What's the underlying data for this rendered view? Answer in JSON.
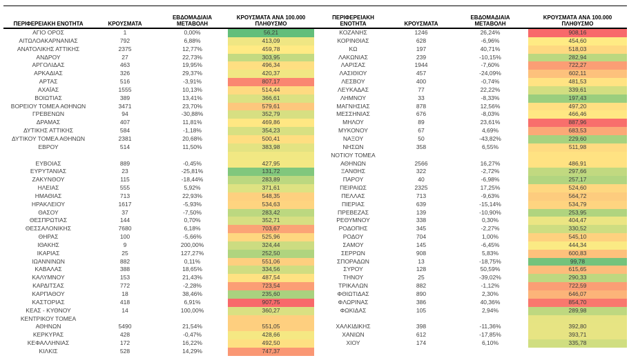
{
  "headers": {
    "region": "ΠΕΡΙΦΕΡΕΙΑΚΗ ΕΝΟΤΗΤΑ",
    "cases": "ΚΡΟΥΣΜΑΤΑ",
    "weekly_line1": "ΕΒΔΟΜΑΔΙΑΙΑ",
    "weekly_line2": "ΜΕΤΑΒΟΛΗ",
    "per100k_line1": "ΚΡΟΥΣΜΑΤΑ ΑΝΑ 100.000",
    "per100k_line2": "ΠΛΗΘΥΣΜΟ"
  },
  "color_scale": {
    "min": {
      "value": 56.21,
      "hex": "#63BE7B"
    },
    "mid": {
      "value": 455,
      "hex": "#FFEB84"
    },
    "max": {
      "value": 908.16,
      "hex": "#F8696B"
    }
  },
  "left_table": {
    "rows": [
      {
        "region": "ΑΓΙΟ ΟΡΟΣ",
        "cases": "1",
        "weekly": "0,00%",
        "per100k": "56,21"
      },
      {
        "region": "ΑΙΤΩΛΟΑΚΑΡΝΑΝΙΑΣ",
        "cases": "792",
        "weekly": "6,88%",
        "per100k": "413,09"
      },
      {
        "region": "ΑΝΑΤΟΛΙΚΗΣ ΑΤΤΙΚΗΣ",
        "cases": "2375",
        "weekly": "12,77%",
        "per100k": "459,78"
      },
      {
        "region": "ΑΝΔΡΟΥ",
        "cases": "27",
        "weekly": "22,73%",
        "per100k": "303,95"
      },
      {
        "region": "ΑΡΓΟΛΙΔΑΣ",
        "cases": "463",
        "weekly": "19,95%",
        "per100k": "496,34"
      },
      {
        "region": "ΑΡΚΑΔΙΑΣ",
        "cases": "326",
        "weekly": "29,37%",
        "per100k": "420,37"
      },
      {
        "region": "ΑΡΤΑΣ",
        "cases": "516",
        "weekly": "-3,91%",
        "per100k": "807,17"
      },
      {
        "region": "ΑΧΑΪΑΣ",
        "cases": "1555",
        "weekly": "10,13%",
        "per100k": "514,44"
      },
      {
        "region": "ΒΟΙΩΤΙΑΣ",
        "cases": "389",
        "weekly": "13,41%",
        "per100k": "366,61"
      },
      {
        "region": "ΒΟΡΕΙΟΥ ΤΟΜΕΑ ΑΘΗΝΩΝ",
        "cases": "3471",
        "weekly": "23,70%",
        "per100k": "579,61"
      },
      {
        "region": "ΓΡΕΒΕΝΩΝ",
        "cases": "94",
        "weekly": "-30,88%",
        "per100k": "352,79"
      },
      {
        "region": "ΔΡΑΜΑΣ",
        "cases": "407",
        "weekly": "11,81%",
        "per100k": "469,86"
      },
      {
        "region": "ΔΥΤΙΚΗΣ ΑΤΤΙΚΗΣ",
        "cases": "584",
        "weekly": "-1,18%",
        "per100k": "354,23"
      },
      {
        "region": "ΔΥΤΙΚΟΥ ΤΟΜΕΑ ΑΘΗΝΩΝ",
        "cases": "2381",
        "weekly": "20,68%",
        "per100k": "500,41"
      },
      {
        "region": "ΕΒΡΟΥ",
        "cases": "514",
        "weekly": "11,50%",
        "per100k": "383,98"
      },
      {
        "region": "",
        "cases": "",
        "weekly": "",
        "per100k": "",
        "fill": "#F1E883"
      },
      {
        "region": "ΕΥΒΟΙΑΣ",
        "cases": "889",
        "weekly": "-0,45%",
        "per100k": "427,95"
      },
      {
        "region": "ΕΥΡΥΤΑΝΙΑΣ",
        "cases": "23",
        "weekly": "-25,81%",
        "per100k": "131,72"
      },
      {
        "region": "ΖΑΚΥΝΘΟΥ",
        "cases": "115",
        "weekly": "-18,44%",
        "per100k": "283,89"
      },
      {
        "region": "ΗΛΕΙΑΣ",
        "cases": "555",
        "weekly": "5,92%",
        "per100k": "371,61"
      },
      {
        "region": "ΗΜΑΘΙΑΣ",
        "cases": "713",
        "weekly": "22,93%",
        "per100k": "548,35"
      },
      {
        "region": "ΗΡΑΚΛΕΙΟΥ",
        "cases": "1617",
        "weekly": "-5,93%",
        "per100k": "534,63"
      },
      {
        "region": "ΘΑΣΟΥ",
        "cases": "37",
        "weekly": "-7,50%",
        "per100k": "283,42"
      },
      {
        "region": "ΘΕΣΠΡΩΤΙΑΣ",
        "cases": "144",
        "weekly": "0,70%",
        "per100k": "352,71"
      },
      {
        "region": "ΘΕΣΣΑΛΟΝΙΚΗΣ",
        "cases": "7680",
        "weekly": "6,18%",
        "per100k": "703,67"
      },
      {
        "region": "ΘΗΡΑΣ",
        "cases": "100",
        "weekly": "-5,66%",
        "per100k": "525,96"
      },
      {
        "region": "ΙΘΑΚΗΣ",
        "cases": "9",
        "weekly": "200,00%",
        "per100k": "324,44"
      },
      {
        "region": "ΙΚΑΡΙΑΣ",
        "cases": "25",
        "weekly": "127,27%",
        "per100k": "252,50"
      },
      {
        "region": "ΙΩΑΝΝΙΝΩΝ",
        "cases": "882",
        "weekly": "0,11%",
        "per100k": "551,06"
      },
      {
        "region": "ΚΑΒΑΛΑΣ",
        "cases": "388",
        "weekly": "18,65%",
        "per100k": "334,56"
      },
      {
        "region": "ΚΑΛΥΜΝΟΥ",
        "cases": "153",
        "weekly": "21,43%",
        "per100k": "487,54"
      },
      {
        "region": "ΚΑΡΔΙΤΣΑΣ",
        "cases": "772",
        "weekly": "-2,28%",
        "per100k": "723,54"
      },
      {
        "region": "ΚΑΡΠΑΘΟΥ",
        "cases": "18",
        "weekly": "38,46%",
        "per100k": "235,60"
      },
      {
        "region": "ΚΑΣΤΟΡΙΑΣ",
        "cases": "418",
        "weekly": "6,91%",
        "per100k": "907,75"
      },
      {
        "region": "ΚΕΑΣ - ΚΥΘΝΟΥ",
        "cases": "14",
        "weekly": "100,00%",
        "per100k": "360,27"
      },
      {
        "region": "ΚΕΝΤΡΙΚΟΥ ΤΟΜΕΑ",
        "cases": "",
        "weekly": "",
        "per100k": "",
        "fill": "#FECF7F"
      },
      {
        "region": "ΑΘΗΝΩΝ",
        "cases": "5490",
        "weekly": "21,54%",
        "per100k": "551,05"
      },
      {
        "region": "ΚΕΡΚΥΡΑΣ",
        "cases": "428",
        "weekly": "-0,47%",
        "per100k": "428,66"
      },
      {
        "region": "ΚΕΦΑΛΛΗΝΙΑΣ",
        "cases": "172",
        "weekly": "16,22%",
        "per100k": "492,50"
      },
      {
        "region": "ΚΙΛΚΙΣ",
        "cases": "528",
        "weekly": "14,29%",
        "per100k": "747,37"
      }
    ]
  },
  "right_table": {
    "rows": [
      {
        "region": "ΚΟΖΑΝΗΣ",
        "cases": "1246",
        "weekly": "26,24%",
        "per100k": "908,16"
      },
      {
        "region": "ΚΟΡΙΝΘΙΑΣ",
        "cases": "628",
        "weekly": "-6,96%",
        "per100k": "454,60"
      },
      {
        "region": "ΚΩ",
        "cases": "197",
        "weekly": "40,71%",
        "per100k": "518,03"
      },
      {
        "region": "ΛΑΚΩΝΙΑΣ",
        "cases": "239",
        "weekly": "-10,15%",
        "per100k": "282,94"
      },
      {
        "region": "ΛΑΡΙΣΑΣ",
        "cases": "1944",
        "weekly": "-7,60%",
        "per100k": "722,27"
      },
      {
        "region": "ΛΑΣΙΘΙΟΥ",
        "cases": "457",
        "weekly": "-24,09%",
        "per100k": "602,11"
      },
      {
        "region": "ΛΕΣΒΟΥ",
        "cases": "400",
        "weekly": "-0,74%",
        "per100k": "481,53"
      },
      {
        "region": "ΛΕΥΚΑΔΑΣ",
        "cases": "77",
        "weekly": "22,22%",
        "per100k": "339,61"
      },
      {
        "region": "ΛΗΜΝΟΥ",
        "cases": "33",
        "weekly": "-8,33%",
        "per100k": "197,43"
      },
      {
        "region": "ΜΑΓΝΗΣΙΑΣ",
        "cases": "878",
        "weekly": "12,56%",
        "per100k": "497,20"
      },
      {
        "region": "ΜΕΣΣΗΝΙΑΣ",
        "cases": "676",
        "weekly": "-8,03%",
        "per100k": "466,46"
      },
      {
        "region": "ΜΗΛΟΥ",
        "cases": "89",
        "weekly": "23,61%",
        "per100k": "887,96"
      },
      {
        "region": "ΜΥΚΟΝΟΥ",
        "cases": "67",
        "weekly": "4,69%",
        "per100k": "683,53"
      },
      {
        "region": "ΝΑΞΟΥ",
        "cases": "50",
        "weekly": "-43,82%",
        "per100k": "229,60"
      },
      {
        "region": "ΝΗΣΩΝ",
        "cases": "358",
        "weekly": "6,55%",
        "per100k": "511,98"
      },
      {
        "region": "ΝΟΤΙΟΥ ΤΟΜΕΑ",
        "cases": "",
        "weekly": "",
        "per100k": "",
        "fill": "#FFE282"
      },
      {
        "region": "ΑΘΗΝΩΝ",
        "cases": "2566",
        "weekly": "16,27%",
        "per100k": "486,91"
      },
      {
        "region": "ΞΑΝΘΗΣ",
        "cases": "322",
        "weekly": "-2,72%",
        "per100k": "297,66"
      },
      {
        "region": "ΠΑΡΟΥ",
        "cases": "40",
        "weekly": "-6,98%",
        "per100k": "257,17"
      },
      {
        "region": "ΠΕΙΡΑΙΩΣ",
        "cases": "2325",
        "weekly": "17,25%",
        "per100k": "524,60"
      },
      {
        "region": "ΠΕΛΛΑΣ",
        "cases": "713",
        "weekly": "-9,63%",
        "per100k": "564,72"
      },
      {
        "region": "ΠΙΕΡΙΑΣ",
        "cases": "639",
        "weekly": "-15,14%",
        "per100k": "534,79"
      },
      {
        "region": "ΠΡΕΒΕΖΑΣ",
        "cases": "139",
        "weekly": "-10,90%",
        "per100k": "253,95"
      },
      {
        "region": "ΡΕΘΥΜΝΟΥ",
        "cases": "338",
        "weekly": "0,30%",
        "per100k": "404,47"
      },
      {
        "region": "ΡΟΔΟΠΗΣ",
        "cases": "345",
        "weekly": "-2,27%",
        "per100k": "330,52"
      },
      {
        "region": "ΡΟΔΟΥ",
        "cases": "704",
        "weekly": "1,00%",
        "per100k": "545,10"
      },
      {
        "region": "ΣΑΜΟΥ",
        "cases": "145",
        "weekly": "-6,45%",
        "per100k": "444,34"
      },
      {
        "region": "ΣΕΡΡΩΝ",
        "cases": "908",
        "weekly": "5,83%",
        "per100k": "600,83"
      },
      {
        "region": "ΣΠΟΡΑΔΩΝ",
        "cases": "13",
        "weekly": "-18,75%",
        "per100k": "99,78"
      },
      {
        "region": "ΣΥΡΟΥ",
        "cases": "128",
        "weekly": "50,59%",
        "per100k": "615,65"
      },
      {
        "region": "ΤΗΝΟΥ",
        "cases": "25",
        "weekly": "-39,02%",
        "per100k": "290,33"
      },
      {
        "region": "ΤΡΙΚΑΛΩΝ",
        "cases": "882",
        "weekly": "-1,12%",
        "per100k": "722,59"
      },
      {
        "region": "ΦΘΙΩΤΙΔΑΣ",
        "cases": "890",
        "weekly": "2,30%",
        "per100k": "646,07"
      },
      {
        "region": "ΦΛΩΡΙΝΑΣ",
        "cases": "386",
        "weekly": "40,36%",
        "per100k": "854,70"
      },
      {
        "region": "ΦΩΚΙΔΑΣ",
        "cases": "105",
        "weekly": "2,94%",
        "per100k": "289,98"
      },
      {
        "region": "",
        "cases": "",
        "weekly": "",
        "per100k": "",
        "fill": "#E6E483"
      },
      {
        "region": "ΧΑΛΚΙΔΙΚΗΣ",
        "cases": "398",
        "weekly": "-11,36%",
        "per100k": "392,80"
      },
      {
        "region": "ΧΑΝΙΩΝ",
        "cases": "612",
        "weekly": "-17,85%",
        "per100k": "393,71"
      },
      {
        "region": "ΧΙΟΥ",
        "cases": "174",
        "weekly": "6,10%",
        "per100k": "335,78"
      }
    ]
  }
}
